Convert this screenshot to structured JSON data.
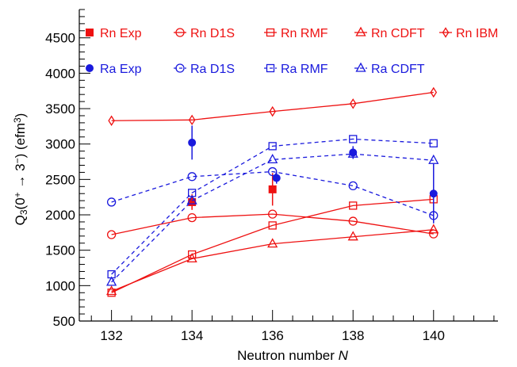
{
  "chart_data": {
    "type": "line",
    "xlabel": "Neutron number N",
    "ylabel": "Q3(0+ → 3−) (efm3)",
    "xlim": [
      131.2,
      141.6
    ],
    "ylim": [
      500,
      4900
    ],
    "xticks": [
      132,
      134,
      136,
      138,
      140
    ],
    "yticks": [
      500,
      1000,
      1500,
      2000,
      2500,
      3000,
      3500,
      4000,
      4500
    ],
    "legend_position": "top-left",
    "grid": false,
    "series": [
      {
        "name": "Rn Exp",
        "color": "#ee1111",
        "marker": "square-filled",
        "line": "none",
        "x": [
          134,
          136
        ],
        "y": [
          2180,
          2360
        ],
        "err": [
          110,
          230
        ]
      },
      {
        "name": "Rn D1S",
        "color": "#ee1111",
        "marker": "circle-open",
        "line": "solid",
        "x": [
          132,
          134,
          136,
          138,
          140
        ],
        "y": [
          1720,
          1960,
          2010,
          1910,
          1730
        ]
      },
      {
        "name": "Rn RMF",
        "color": "#ee1111",
        "marker": "square-open",
        "line": "solid",
        "x": [
          132,
          134,
          136,
          138,
          140
        ],
        "y": [
          900,
          1440,
          1850,
          2130,
          2220
        ]
      },
      {
        "name": "Rn CDFT",
        "color": "#ee1111",
        "marker": "triangle-open",
        "line": "solid",
        "x": [
          132,
          134,
          136,
          138,
          140
        ],
        "y": [
          920,
          1380,
          1590,
          1690,
          1790
        ]
      },
      {
        "name": "Rn IBM",
        "color": "#ee1111",
        "marker": "diamond-open",
        "line": "solid",
        "x": [
          132,
          134,
          136,
          138,
          140
        ],
        "y": [
          3330,
          3340,
          3460,
          3570,
          3730
        ]
      },
      {
        "name": "Ra Exp",
        "color": "#1a1add",
        "marker": "circle-filled",
        "line": "none",
        "x": [
          134,
          136.1,
          138,
          140
        ],
        "y": [
          3020,
          2520,
          2880,
          2300
        ],
        "err": [
          240,
          80,
          90,
          420
        ]
      },
      {
        "name": "Ra D1S",
        "color": "#1a1add",
        "marker": "circle-open",
        "line": "dashed",
        "x": [
          132,
          134,
          136,
          138,
          140
        ],
        "y": [
          2180,
          2540,
          2610,
          2410,
          1990
        ]
      },
      {
        "name": "Ra RMF",
        "color": "#1a1add",
        "marker": "square-open",
        "line": "dashed",
        "x": [
          132,
          134,
          136,
          138,
          140
        ],
        "y": [
          1160,
          2310,
          2970,
          3070,
          3010
        ]
      },
      {
        "name": "Ra CDFT",
        "color": "#1a1add",
        "marker": "triangle-open",
        "line": "dashed",
        "x": [
          132,
          134,
          136,
          138,
          140
        ],
        "y": [
          1050,
          2200,
          2780,
          2860,
          2770
        ]
      }
    ]
  }
}
